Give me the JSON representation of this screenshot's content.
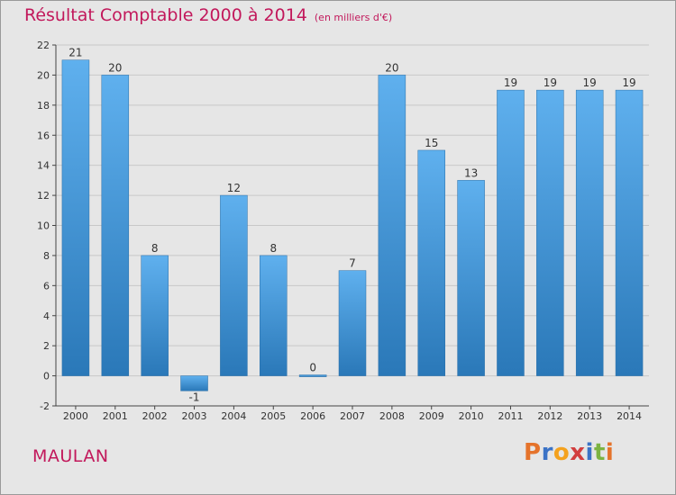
{
  "header": {
    "title": "Résultat Comptable 2000 à 2014",
    "unit_note": "(en milliers d'€)"
  },
  "footer": {
    "place_name": "MAULAN",
    "logo_text": "Proxiti"
  },
  "colors": {
    "title": "#c2185b",
    "bar_light": "#5fb0ee",
    "bar_dark": "#2a78b8",
    "plot_bg": "#e6e6e6",
    "grid": "#c8c8c8"
  },
  "logo_letter_colors": [
    "#e5732b",
    "#3b73c6",
    "#f4a21e",
    "#d23e3e",
    "#3b73c6",
    "#7cb342",
    "#e5732b"
  ],
  "chart_data": {
    "type": "bar",
    "categories": [
      "2000",
      "2001",
      "2002",
      "2003",
      "2004",
      "2005",
      "2006",
      "2007",
      "2008",
      "2009",
      "2010",
      "2011",
      "2012",
      "2013",
      "2014"
    ],
    "values": [
      21,
      20,
      8,
      -1,
      12,
      8,
      0,
      7,
      20,
      15,
      13,
      19,
      19,
      19,
      19
    ],
    "title": "Résultat Comptable 2000 à 2014",
    "xlabel": "",
    "ylabel": "",
    "ylim": [
      -2,
      22
    ],
    "yticks": [
      -2,
      0,
      2,
      4,
      6,
      8,
      10,
      12,
      14,
      16,
      18,
      20,
      22
    ],
    "grid": true,
    "legend": "none"
  }
}
